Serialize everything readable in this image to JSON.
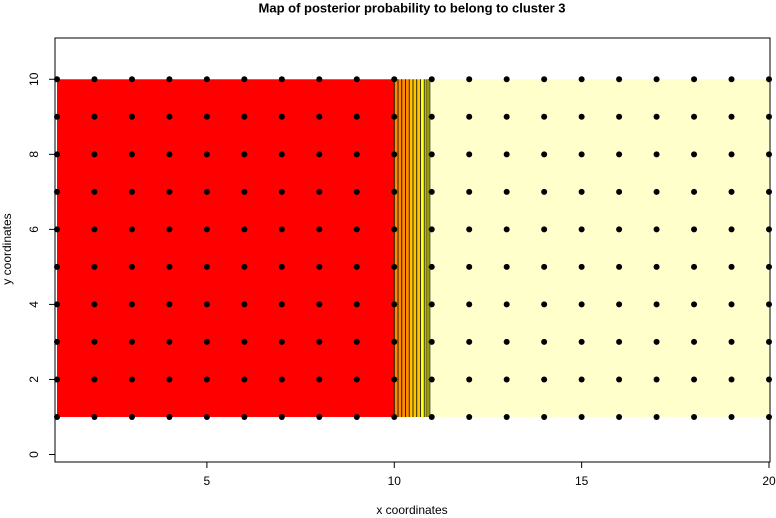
{
  "chart_data": {
    "type": "scatter",
    "title": "Map of posterior probability to belong to cluster  3",
    "xlabel": "x coordinates",
    "ylabel": "y coordinates",
    "xlim": [
      1,
      20
    ],
    "ylim": [
      -0.2,
      11.1
    ],
    "xticks": [
      5,
      10,
      15,
      20
    ],
    "yticks": [
      0,
      2,
      4,
      6,
      8,
      10
    ],
    "regions": [
      {
        "x": [
          1,
          10
        ],
        "y": [
          1,
          10
        ],
        "color": "#ff0000"
      },
      {
        "x": [
          10,
          10.4
        ],
        "y": [
          1,
          10
        ],
        "color": "#ff8c00"
      },
      {
        "x": [
          10.4,
          10.7
        ],
        "y": [
          1,
          10
        ],
        "color": "#ffc400"
      },
      {
        "x": [
          10.7,
          10.95
        ],
        "y": [
          1,
          10
        ],
        "color": "#ffff20"
      },
      {
        "x": [
          10.95,
          20
        ],
        "y": [
          1,
          10
        ],
        "color": "#ffffcc"
      }
    ],
    "contours": [
      10.0,
      10.1,
      10.2,
      10.3,
      10.4,
      10.5,
      10.6,
      10.7,
      10.8,
      10.85,
      10.9,
      10.95
    ],
    "points": {
      "color": "#000000",
      "x": [
        1,
        2,
        3,
        4,
        5,
        6,
        7,
        8,
        9,
        10,
        11,
        12,
        13,
        14,
        15,
        16,
        17,
        18,
        19,
        20,
        1,
        2,
        3,
        4,
        5,
        6,
        7,
        8,
        9,
        10,
        11,
        12,
        13,
        14,
        15,
        16,
        17,
        18,
        19,
        20,
        1,
        2,
        3,
        4,
        5,
        6,
        7,
        8,
        9,
        10,
        11,
        12,
        13,
        14,
        15,
        16,
        17,
        18,
        19,
        20,
        1,
        2,
        3,
        4,
        5,
        6,
        7,
        8,
        9,
        10,
        11,
        12,
        13,
        14,
        15,
        16,
        17,
        18,
        19,
        20,
        1,
        2,
        3,
        4,
        5,
        6,
        7,
        8,
        9,
        10,
        11,
        12,
        13,
        14,
        15,
        16,
        17,
        18,
        19,
        20,
        1,
        2,
        3,
        4,
        5,
        6,
        7,
        8,
        9,
        10,
        11,
        12,
        13,
        14,
        15,
        16,
        17,
        18,
        19,
        20,
        1,
        2,
        3,
        4,
        5,
        6,
        7,
        8,
        9,
        10,
        11,
        12,
        13,
        14,
        15,
        16,
        17,
        18,
        19,
        20,
        1,
        2,
        3,
        4,
        5,
        6,
        7,
        8,
        9,
        10,
        11,
        12,
        13,
        14,
        15,
        16,
        17,
        18,
        19,
        20,
        1,
        2,
        3,
        4,
        5,
        6,
        7,
        8,
        9,
        10,
        11,
        12,
        13,
        14,
        15,
        16,
        17,
        18,
        19,
        20,
        1,
        2,
        3,
        4,
        5,
        6,
        7,
        8,
        9,
        10,
        11,
        12,
        13,
        14,
        15,
        16,
        17,
        18,
        19,
        20
      ],
      "y": [
        1,
        1,
        1,
        1,
        1,
        1,
        1,
        1,
        1,
        1,
        1,
        1,
        1,
        1,
        1,
        1,
        1,
        1,
        1,
        1,
        2,
        2,
        2,
        2,
        2,
        2,
        2,
        2,
        2,
        2,
        2,
        2,
        2,
        2,
        2,
        2,
        2,
        2,
        2,
        2,
        3,
        3,
        3,
        3,
        3,
        3,
        3,
        3,
        3,
        3,
        3,
        3,
        3,
        3,
        3,
        3,
        3,
        3,
        3,
        3,
        4,
        4,
        4,
        4,
        4,
        4,
        4,
        4,
        4,
        4,
        4,
        4,
        4,
        4,
        4,
        4,
        4,
        4,
        4,
        4,
        5,
        5,
        5,
        5,
        5,
        5,
        5,
        5,
        5,
        5,
        5,
        5,
        5,
        5,
        5,
        5,
        5,
        5,
        5,
        5,
        6,
        6,
        6,
        6,
        6,
        6,
        6,
        6,
        6,
        6,
        6,
        6,
        6,
        6,
        6,
        6,
        6,
        6,
        6,
        6,
        7,
        7,
        7,
        7,
        7,
        7,
        7,
        7,
        7,
        7,
        7,
        7,
        7,
        7,
        7,
        7,
        7,
        7,
        7,
        7,
        8,
        8,
        8,
        8,
        8,
        8,
        8,
        8,
        8,
        8,
        8,
        8,
        8,
        8,
        8,
        8,
        8,
        8,
        8,
        8,
        9,
        9,
        9,
        9,
        9,
        9,
        9,
        9,
        9,
        9,
        9,
        9,
        9,
        9,
        9,
        9,
        9,
        9,
        9,
        9,
        10,
        10,
        10,
        10,
        10,
        10,
        10,
        10,
        10,
        10,
        10,
        10,
        10,
        10,
        10,
        10,
        10,
        10,
        10,
        10
      ]
    }
  }
}
